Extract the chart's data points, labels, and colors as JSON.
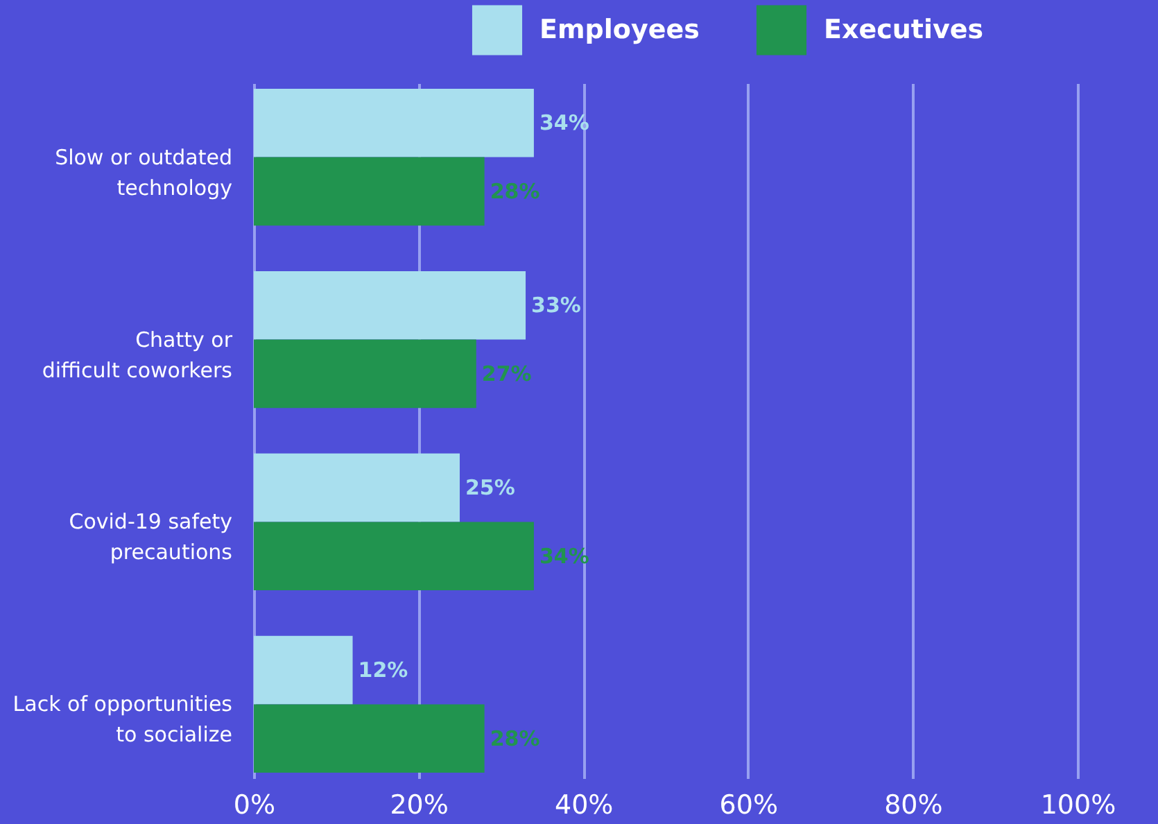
{
  "chart_data": {
    "type": "bar",
    "orientation": "horizontal",
    "categories": [
      "Slow or outdated technology",
      "Chatty or difficult coworkers",
      "Covid-19 safety precautions",
      "Lack of opportunities to socialize"
    ],
    "series": [
      {
        "name": "Employees",
        "color": "#a9dfee",
        "values": [
          34,
          33,
          25,
          12
        ],
        "value_labels": [
          "34%",
          "33%",
          "25%",
          "12%"
        ]
      },
      {
        "name": "Executives",
        "color": "#21944f",
        "values": [
          28,
          27,
          34,
          28
        ],
        "value_labels": [
          "28%",
          "27%",
          "34%",
          "28%"
        ]
      }
    ],
    "xlim": [
      0,
      100
    ],
    "xticks": [
      {
        "value": 0,
        "label": "0%"
      },
      {
        "value": 20,
        "label": "20%"
      },
      {
        "value": 40,
        "label": "40%"
      },
      {
        "value": 60,
        "label": "60%"
      },
      {
        "value": 80,
        "label": "80%"
      },
      {
        "value": 100,
        "label": "100%"
      }
    ],
    "grid": "x",
    "legend": "top right"
  }
}
